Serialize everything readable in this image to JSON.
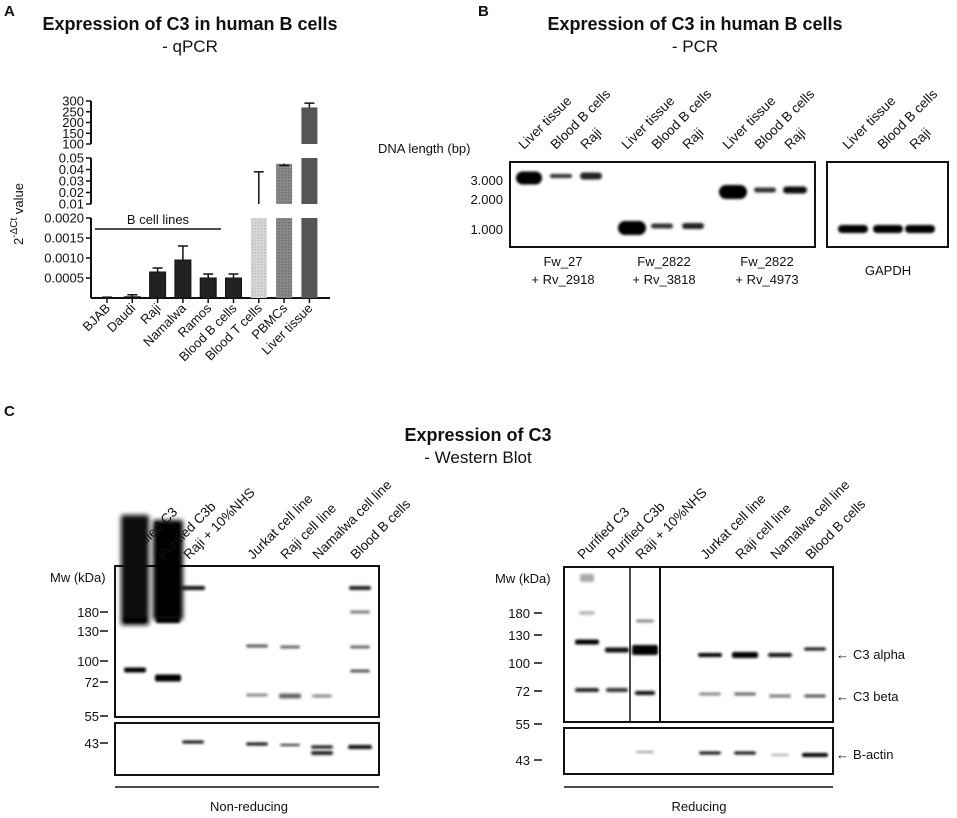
{
  "panel_a": {
    "label": "A"
  },
  "chart_data": {
    "type": "bar",
    "title": "Expression of C3 in human B cells",
    "subtitle": "- qPCR",
    "ylabel_base": "2",
    "ylabel_sup": "-ΔCt",
    "ylabel_rest": " value",
    "xlabel": "",
    "categories": [
      "BJAB",
      "Daudi",
      "Raji",
      "Namalwa",
      "Ramos",
      "Blood B cells",
      "Blood T cells",
      "PBMCs",
      "Liver tissue"
    ],
    "values": [
      1e-05,
      3e-05,
      0.00065,
      0.00095,
      0.0005,
      0.0005,
      0.01,
      0.045,
      270
    ],
    "error_upper": [
      2e-05,
      8e-05,
      0.00075,
      0.0013,
      0.0006,
      0.0006,
      0.038,
      0.052,
      290
    ],
    "colors": [
      "#222222",
      "#222222",
      "#222222",
      "#222222",
      "#222222",
      "#222222",
      "#cccccc",
      "#888888",
      "#555555"
    ],
    "y_axis_broken": true,
    "y_segments": [
      {
        "range": [
          0,
          0.002
        ],
        "ticks": [
          "0.0005",
          "0.0010",
          "0.0015",
          "0.0020"
        ],
        "tick_values": [
          0.0005,
          0.001,
          0.0015,
          0.002
        ]
      },
      {
        "range": [
          0.01,
          0.05
        ],
        "ticks": [
          "0.01",
          "0.02",
          "0.03",
          "0.04",
          "0.05"
        ],
        "tick_values": [
          0.01,
          0.02,
          0.03,
          0.04,
          0.05
        ]
      },
      {
        "range": [
          100,
          300
        ],
        "ticks": [
          "100",
          "150",
          "200",
          "250",
          "300"
        ],
        "tick_values": [
          100,
          150,
          200,
          250,
          300
        ]
      }
    ],
    "annotation": "B cell lines"
  },
  "panel_b": {
    "label": "B",
    "title": "Expression of C3 in human B cells",
    "subtitle": "- PCR",
    "y_label": "DNA length (bp)",
    "size_markers": [
      "3.000",
      "2.000",
      "1.000"
    ],
    "gels": [
      {
        "lanes": [
          "Liver tissue",
          "Blood B cells",
          "Raji"
        ],
        "primer_line1": "Fw_27",
        "primer_line2": "+ Rv_2918"
      },
      {
        "lanes": [
          "Liver tissue",
          "Blood B cells",
          "Raji"
        ],
        "primer_line1": "Fw_2822",
        "primer_line2": "+ Rv_3818"
      },
      {
        "lanes": [
          "Liver tissue",
          "Blood B cells",
          "Raji"
        ],
        "primer_line1": "Fw_2822",
        "primer_line2": "+ Rv_4973"
      }
    ],
    "control": {
      "lanes": [
        "Liver tissue",
        "Blood B cells",
        "Raji"
      ],
      "label": "GAPDH"
    }
  },
  "panel_c": {
    "label": "C",
    "title": "Expression of C3",
    "subtitle": "- Western Blot",
    "blots": [
      {
        "condition": "Non-reducing",
        "mw_label": "Mw (kDa)",
        "markers": [
          "180",
          "130",
          "100",
          "72",
          "55",
          "43"
        ],
        "lanes": [
          "Purified C3",
          "Purified C3b",
          "Raji + 10%NHS",
          "Jurkat cell line",
          "Raji cell line",
          "Namalwa cell line",
          "Blood B cells"
        ]
      },
      {
        "condition": "Reducing",
        "mw_label": "Mw (kDa)",
        "markers": [
          "180",
          "130",
          "100",
          "72",
          "55",
          "43"
        ],
        "lanes": [
          "Purified C3",
          "Purified C3b",
          "Raji + 10%NHS",
          "Jurkat cell line",
          "Raji cell line",
          "Namalwa cell line",
          "Blood B cells"
        ],
        "annotations": [
          "C3 alpha",
          "C3 beta",
          "B-actin"
        ]
      }
    ]
  }
}
